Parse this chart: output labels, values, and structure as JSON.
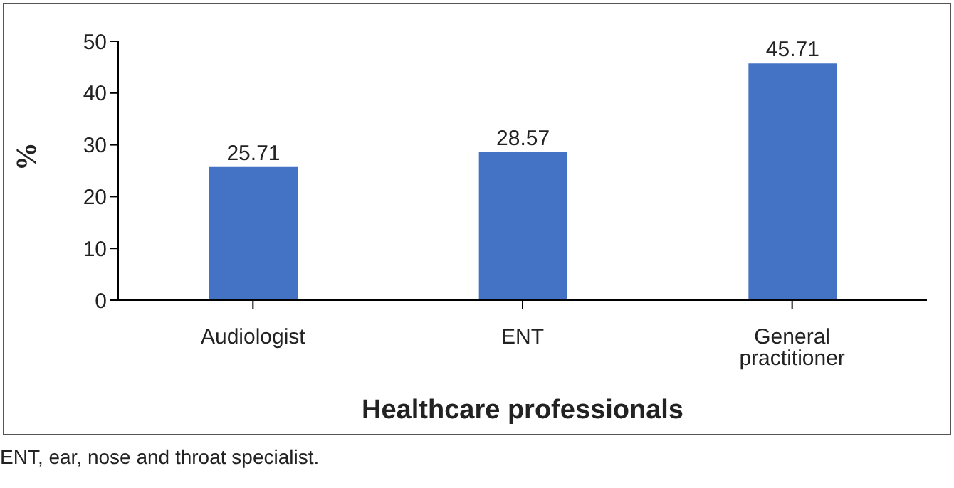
{
  "chart_data": {
    "type": "bar",
    "categories": [
      "Audiologist",
      "ENT",
      "General practitioner"
    ],
    "values": [
      25.71,
      28.57,
      45.71
    ],
    "color": "#4472c4",
    "xlabel": "Healthcare professionals",
    "ylabel": "%",
    "ylim": [
      0,
      50
    ],
    "yticks": [
      0,
      10,
      20,
      30,
      40,
      50
    ],
    "grid": false,
    "data_labels": true,
    "legend": false,
    "annotations": [
      "ENT, ear, nose and throat specialist."
    ]
  }
}
